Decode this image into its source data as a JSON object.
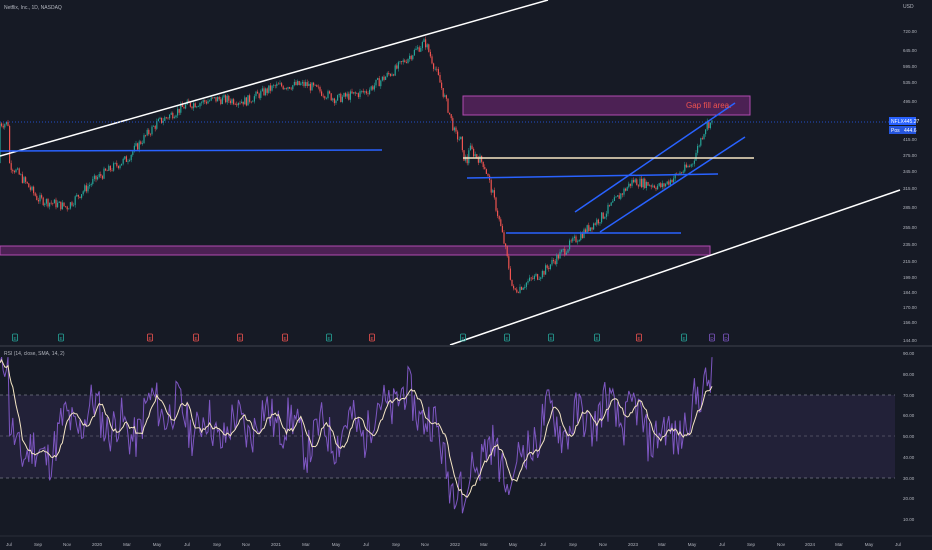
{
  "header": {
    "symbol_line": "Netflix, Inc., 1D, NASDAQ",
    "currency": "USD"
  },
  "price_axis": {
    "ticks": [
      "720.00",
      "645.00",
      "595.00",
      "535.00",
      "495.00",
      "455.00",
      "415.00",
      "375.00",
      "345.00",
      "315.00",
      "285.00",
      "255.00",
      "235.00",
      "215.00",
      "199.00",
      "184.00",
      "170.00",
      "156.00",
      "144.00"
    ],
    "last_label": "NFLX",
    "last_value": "445.27",
    "pos_label": "Pos",
    "pos_value": "444.6"
  },
  "annotation": {
    "gap_text": "Gap fill area."
  },
  "rsi": {
    "label": "RSI (14, close, SMA, 14, 2)",
    "ticks": [
      "90.00",
      "80.00",
      "70.00",
      "60.00",
      "50.00",
      "40.00",
      "30.00",
      "20.00",
      "10.00"
    ]
  },
  "time_axis": {
    "labels": [
      "Jul",
      "Sep",
      "Nov",
      "2020",
      "Mar",
      "May",
      "Jul",
      "Sep",
      "Nov",
      "2021",
      "Mar",
      "May",
      "Jul",
      "Sep",
      "Nov",
      "2022",
      "Mar",
      "May",
      "Jul",
      "Sep",
      "Nov",
      "2023",
      "Mar",
      "May",
      "Jul",
      "Sep",
      "Nov",
      "2024",
      "Mar",
      "May",
      "Jul"
    ]
  },
  "markers": {
    "earnings_letter": "E",
    "dividend_letter": "D"
  },
  "colors": {
    "background": "#161a25",
    "candle_up": "#26a69a",
    "candle_down": "#ef5350",
    "trendline_white": "#ffffff",
    "trendline_blue": "#2962ff",
    "zone_fill": "#8e2b8e",
    "rsi_line": "#7e57c2",
    "rsi_sma": "#f5e6c4",
    "gap_text": "#ef5350",
    "last_price_badge": "#2962ff"
  },
  "chart_data": [
    {
      "type": "line",
      "panel": "price",
      "title": "Netflix, Inc., 1D, NASDAQ",
      "note": "Daily candlesticks approximated from visual; closing prices at monthly waypoints",
      "x": [
        "2019-07",
        "2019-09",
        "2019-11",
        "2020-01",
        "2020-03",
        "2020-05",
        "2020-07",
        "2020-09",
        "2020-11",
        "2021-01",
        "2021-03",
        "2021-05",
        "2021-07",
        "2021-09",
        "2021-11",
        "2022-01",
        "2022-03",
        "2022-05",
        "2022-07",
        "2022-09",
        "2022-11",
        "2023-01",
        "2023-03",
        "2023-05",
        "2023-06"
      ],
      "series": [
        {
          "name": "NFLX",
          "values": [
            362,
            300,
            288,
            335,
            370,
            445,
            490,
            505,
            500,
            540,
            545,
            505,
            525,
            590,
            680,
            420,
            360,
            185,
            205,
            240,
            275,
            330,
            320,
            360,
            445
          ]
        }
      ],
      "yscale": "log",
      "ylim": [
        144,
        720
      ]
    },
    {
      "type": "line",
      "panel": "rsi",
      "title": "RSI (14, close, SMA, 14, 2)",
      "x": [
        "2019-07",
        "2019-09",
        "2019-11",
        "2020-01",
        "2020-03",
        "2020-05",
        "2020-07",
        "2020-09",
        "2020-11",
        "2021-01",
        "2021-03",
        "2021-05",
        "2021-07",
        "2021-09",
        "2021-11",
        "2022-01",
        "2022-03",
        "2022-05",
        "2022-07",
        "2022-09",
        "2022-11",
        "2023-01",
        "2023-03",
        "2023-05",
        "2023-06"
      ],
      "series": [
        {
          "name": "RSI",
          "values": [
            52,
            38,
            55,
            62,
            50,
            66,
            58,
            52,
            55,
            60,
            48,
            52,
            55,
            70,
            62,
            28,
            45,
            30,
            58,
            55,
            62,
            60,
            48,
            58,
            82
          ]
        }
      ],
      "ylim": [
        10,
        90
      ],
      "bands": [
        30,
        70
      ]
    }
  ]
}
